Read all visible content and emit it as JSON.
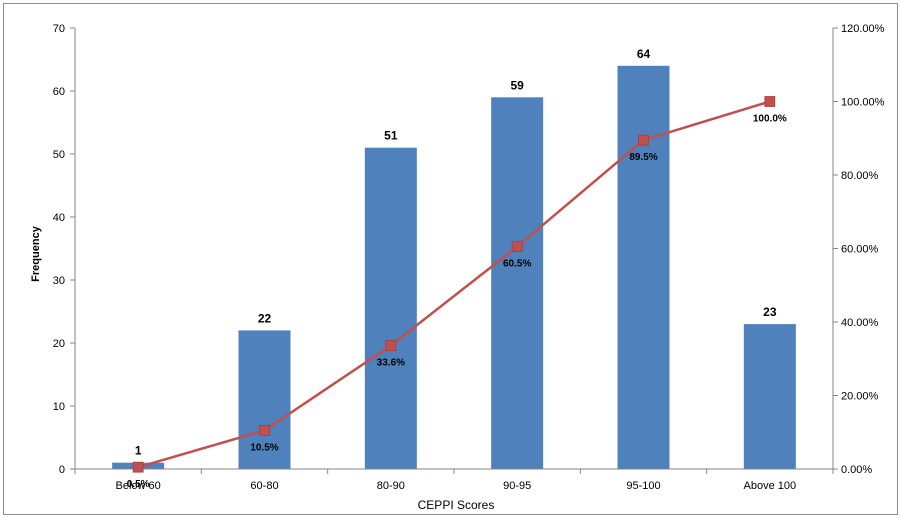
{
  "chart_data": {
    "type": "bar",
    "title": "",
    "xlabel": "CEPPI Scores",
    "ylabel": "Frequency",
    "y2label": "",
    "categories": [
      "Below 60",
      "60-80",
      "80-90",
      "90-95",
      "95-100",
      "Above 100"
    ],
    "ylim": [
      0,
      70
    ],
    "yticks": [
      "0",
      "10",
      "20",
      "30",
      "40",
      "50",
      "60",
      "70"
    ],
    "y2lim": [
      0,
      120
    ],
    "y2ticks": [
      "0.00%",
      "20.00%",
      "40.00%",
      "60.00%",
      "80.00%",
      "100.00%",
      "120.00%"
    ],
    "grid": false,
    "legend": "none",
    "series": [
      {
        "kind": "bar",
        "axis": "left",
        "values": [
          1,
          22,
          51,
          59,
          64,
          23
        ],
        "labels": [
          "1",
          "22",
          "51",
          "59",
          "64",
          "23"
        ],
        "color": "#4f81bd"
      },
      {
        "kind": "line",
        "axis": "right",
        "values": [
          0.5,
          10.5,
          33.6,
          60.5,
          89.5,
          100.0
        ],
        "labels": [
          "0.5%",
          "10.5%",
          "33.6%",
          "60.5%",
          "89.5%",
          "100.0%"
        ],
        "color": "#c0504d",
        "marker": "square"
      }
    ]
  }
}
